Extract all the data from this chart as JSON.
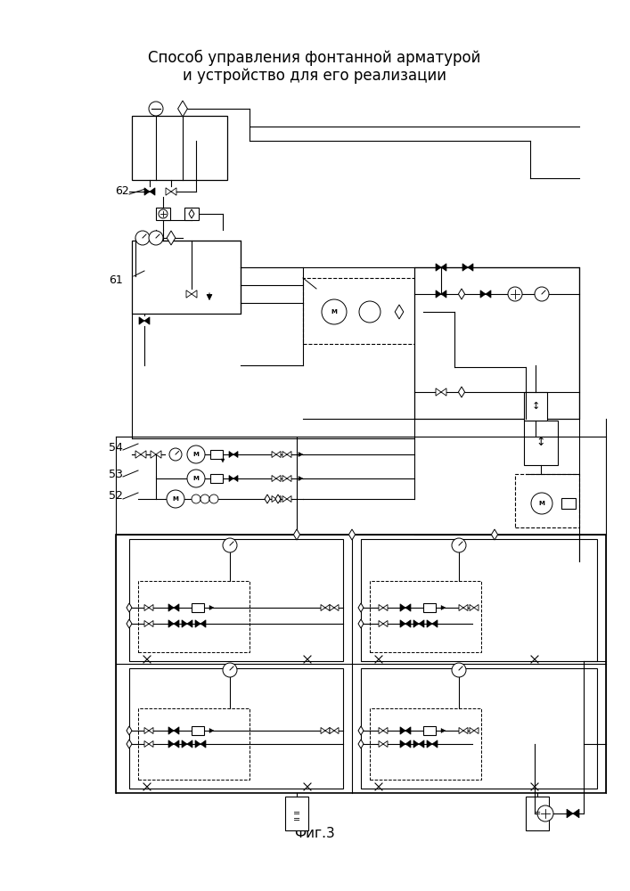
{
  "title_line1": "Способ управления фонтанной арматурой",
  "title_line2": "и устройство для его реализации",
  "caption": "Фиг.3",
  "bg_color": "#ffffff",
  "fg_color": "#000000",
  "title_fontsize": 12,
  "caption_fontsize": 11,
  "label_fontsize": 9
}
